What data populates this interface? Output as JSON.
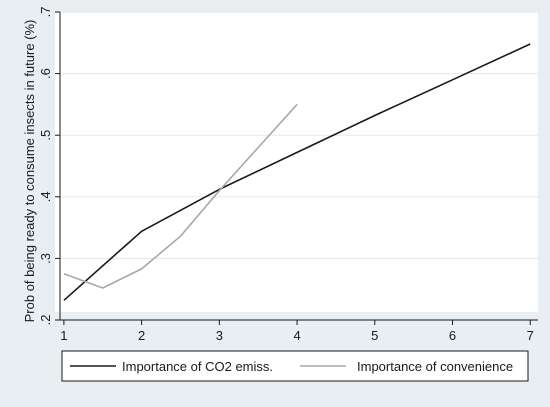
{
  "chart_data": {
    "type": "line",
    "title": "",
    "xlabel": "",
    "ylabel": "Prob of being ready to consume insects in future (%)",
    "xlim": [
      0.95,
      7.1
    ],
    "ylim": [
      0.2,
      0.7
    ],
    "x_ticks": [
      "1",
      "2",
      "3",
      "4",
      "5",
      "6",
      "7"
    ],
    "y_ticks": [
      ".2",
      ".3",
      ".4",
      ".5",
      ".6",
      ".7"
    ],
    "grid": "horizontal",
    "legend_position": "bottom",
    "series": [
      {
        "name": "Importance of CO2 emiss.",
        "color": "#1a1a1a",
        "x": [
          1,
          2,
          3,
          4,
          5,
          6,
          7
        ],
        "y": [
          0.232,
          0.344,
          0.412,
          0.472,
          0.532,
          0.59,
          0.648
        ]
      },
      {
        "name": "Importance of convenience",
        "color": "#a8a8a8",
        "x": [
          1,
          1.5,
          2,
          2.5,
          3,
          3.5,
          4
        ],
        "y": [
          0.275,
          0.252,
          0.283,
          0.336,
          0.41,
          0.48,
          0.55
        ]
      }
    ]
  }
}
